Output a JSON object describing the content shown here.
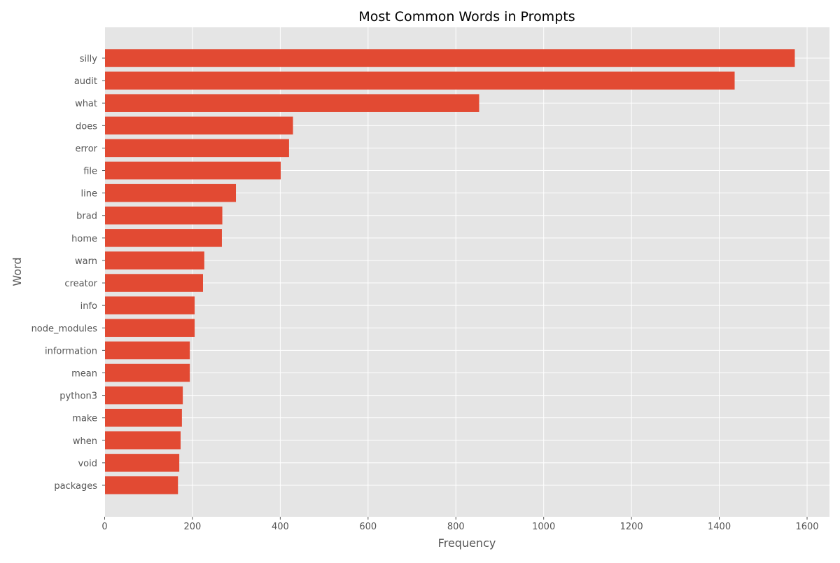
{
  "chart_data": {
    "type": "bar",
    "orientation": "horizontal",
    "title": "Most Common Words in Prompts",
    "xlabel": "Frequency",
    "ylabel": "Word",
    "xlim": [
      0,
      1650
    ],
    "xticks": [
      0,
      200,
      400,
      600,
      800,
      1000,
      1200,
      1400,
      1600
    ],
    "grid": true,
    "bar_color": "#E24A33",
    "background_color": "#E5E5E5",
    "categories": [
      "silly",
      "audit",
      "what",
      "does",
      "error",
      "file",
      "line",
      "brad",
      "home",
      "warn",
      "creator",
      "info",
      "node_modules",
      "information",
      "mean",
      "python3",
      "make",
      "when",
      "void",
      "packages"
    ],
    "values": [
      1572,
      1435,
      853,
      429,
      420,
      401,
      299,
      268,
      267,
      227,
      224,
      205,
      205,
      194,
      194,
      178,
      176,
      173,
      170,
      167
    ]
  }
}
